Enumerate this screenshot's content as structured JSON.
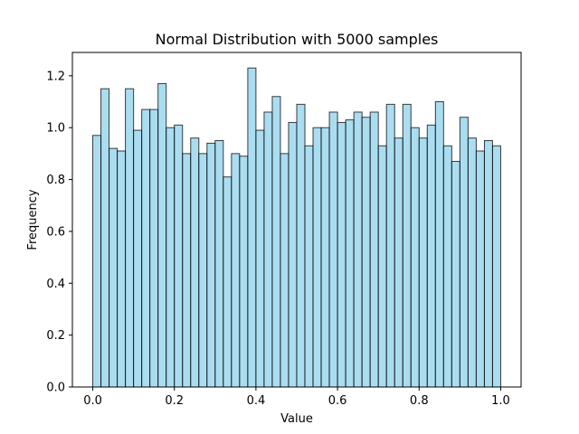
{
  "chart_data": {
    "type": "bar",
    "title": "Normal Distribution with 5000 samples",
    "xlabel": "Value",
    "ylabel": "Frequency",
    "xlim": [
      -0.05,
      1.05
    ],
    "ylim": [
      0,
      1.29
    ],
    "xticks": [
      0.0,
      0.2,
      0.4,
      0.6,
      0.8,
      1.0
    ],
    "xtick_labels": [
      "0.0",
      "0.2",
      "0.4",
      "0.6",
      "0.8",
      "1.0"
    ],
    "yticks": [
      0.0,
      0.2,
      0.4,
      0.6,
      0.8,
      1.0,
      1.2
    ],
    "ytick_labels": [
      "0.0",
      "0.2",
      "0.4",
      "0.6",
      "0.8",
      "1.0",
      "1.2"
    ],
    "grid": false,
    "bin_edges": [
      0.0,
      0.02,
      0.04,
      0.06,
      0.08,
      0.1,
      0.12,
      0.14,
      0.16,
      0.18,
      0.2,
      0.22,
      0.24,
      0.26,
      0.28,
      0.3,
      0.32,
      0.34,
      0.36,
      0.38,
      0.4,
      0.42,
      0.44,
      0.46,
      0.48,
      0.5,
      0.52,
      0.54,
      0.56,
      0.58,
      0.6,
      0.62,
      0.64,
      0.66,
      0.68,
      0.7,
      0.72,
      0.74,
      0.76,
      0.78,
      0.8,
      0.82,
      0.84,
      0.86,
      0.88,
      0.9,
      0.92,
      0.94,
      0.96,
      0.98,
      1.0
    ],
    "values": [
      0.97,
      1.15,
      0.92,
      0.91,
      1.15,
      0.99,
      1.07,
      1.07,
      1.17,
      1.0,
      1.01,
      0.9,
      0.96,
      0.9,
      0.94,
      0.95,
      0.81,
      0.9,
      0.89,
      1.23,
      0.99,
      1.06,
      1.12,
      0.9,
      1.02,
      1.09,
      0.93,
      1.0,
      1.0,
      1.06,
      1.02,
      1.03,
      1.06,
      1.04,
      1.06,
      0.93,
      1.09,
      0.96,
      1.09,
      1.0,
      0.96,
      1.01,
      1.1,
      0.93,
      0.87,
      1.04,
      0.96,
      0.91,
      0.95,
      0.93
    ],
    "bar_color": "#87ceeb",
    "bar_opacity": 0.7,
    "edge_color": "#000000"
  }
}
